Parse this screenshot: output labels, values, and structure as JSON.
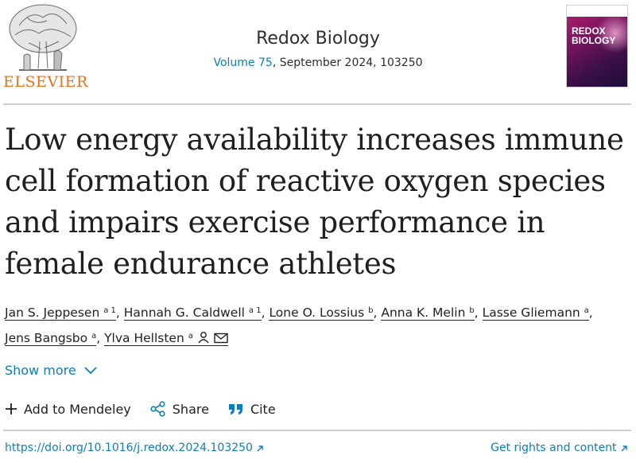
{
  "publisher": {
    "name": "ELSEVIER"
  },
  "journal": {
    "title": "Redox Biology",
    "volume_link": "Volume 75",
    "issue_info": ", September 2024, 103250",
    "cover_title_line1": "REDOX",
    "cover_title_line2": "BIOLOGY"
  },
  "article": {
    "title": "Low energy availability increases immune cell formation of reactive oxygen species and impairs exercise performance in female endurance athletes"
  },
  "authors": [
    {
      "name": "Jan S. Jeppesen",
      "sup": "a 1"
    },
    {
      "name": "Hannah G. Caldwell",
      "sup": "a 1"
    },
    {
      "name": "Lone O. Lossius",
      "sup": "b"
    },
    {
      "name": "Anna K. Melin",
      "sup": "b"
    },
    {
      "name": "Lasse Gliemann",
      "sup": "a"
    },
    {
      "name": "Jens Bangsbo",
      "sup": "a"
    },
    {
      "name": "Ylva Hellsten",
      "sup": "a"
    }
  ],
  "show_more": "Show more",
  "actions": {
    "mendeley": "Add to Mendeley",
    "share": "Share",
    "cite": "Cite"
  },
  "footer": {
    "doi": "https://doi.org/10.1016/j.redox.2024.103250",
    "rights": "Get rights and content"
  },
  "colors": {
    "link": "#0c7dbb",
    "publisher_orange": "#e9711c",
    "text": "#1f1f1f"
  },
  "icons": {
    "publisher_logo": "elsevier-tree-logo",
    "corresponding_author": "person-icon",
    "email": "envelope-icon",
    "show_more": "chevron-down-icon",
    "mendeley": "plus-icon",
    "share": "share-icon",
    "cite": "quote-icon",
    "external": "arrow-up-right-icon"
  }
}
